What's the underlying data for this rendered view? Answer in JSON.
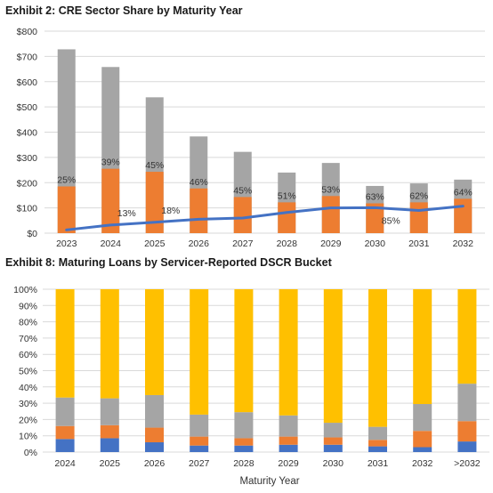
{
  "chart_data": [
    {
      "type": "bar",
      "title": "Exhibit 2: CRE Sector Share by Maturity Year",
      "categories": [
        "2023",
        "2024",
        "2025",
        "2026",
        "2027",
        "2028",
        "2029",
        "2030",
        "2031",
        "2032"
      ],
      "ylim": [
        0,
        800
      ],
      "yticks": [
        "$0",
        "$100",
        "$200",
        "$300",
        "$400",
        "$500",
        "$600",
        "$700",
        "$800"
      ],
      "series": [
        {
          "kind": "bar-total",
          "values": [
            728,
            658,
            538,
            383,
            322,
            240,
            278,
            187,
            197,
            212
          ]
        },
        {
          "kind": "bar-part",
          "values": [
            185,
            255,
            243,
            177,
            143,
            122,
            147,
            118,
            122,
            136
          ]
        },
        {
          "kind": "line",
          "values": [
            13,
            32,
            43,
            55,
            60,
            82,
            100,
            101,
            90,
            107
          ]
        }
      ],
      "data_labels": [
        "25%",
        "39%",
        "45%",
        "46%",
        "45%",
        "51%",
        "53%",
        "63%",
        "62%",
        "64%"
      ],
      "line_labels": [
        {
          "index": 1,
          "text": "13%"
        },
        {
          "index": 2,
          "text": "18%"
        },
        {
          "index": 7,
          "text": "85%"
        }
      ],
      "colors": {
        "total": "#a5a5a5",
        "part": "#ed7d31",
        "line": "#4472c4",
        "grid": "#d9d9d9"
      },
      "grid": true
    },
    {
      "type": "bar",
      "stacked": true,
      "percent": true,
      "title": "Exhibit 8: Maturing Loans by Servicer-Reported DSCR Bucket",
      "xlabel": "Maturity Year",
      "categories": [
        "2024",
        "2025",
        "2026",
        "2027",
        "2028",
        "2029",
        "2030",
        "2031",
        "2032",
        ">2032"
      ],
      "ylim": [
        0,
        100
      ],
      "yticks": [
        "0%",
        "10%",
        "20%",
        "30%",
        "40%",
        "50%",
        "60%",
        "70%",
        "80%",
        "90%",
        "100%"
      ],
      "series": [
        {
          "color": "#4472c4",
          "values": [
            8,
            8.5,
            6,
            4,
            4,
            4.5,
            4.5,
            3.5,
            3,
            6.5
          ]
        },
        {
          "color": "#ed7d31",
          "values": [
            8,
            8,
            9,
            5.5,
            4.5,
            5,
            4.5,
            4,
            10,
            12.5
          ]
        },
        {
          "color": "#a5a5a5",
          "values": [
            17.5,
            16.5,
            20,
            13.5,
            16,
            13,
            9,
            8,
            16.5,
            23
          ]
        },
        {
          "color": "#ffc000",
          "values": [
            66.5,
            67,
            65,
            77,
            75.5,
            77.5,
            82,
            84.5,
            70.5,
            58
          ]
        }
      ],
      "grid": true
    }
  ]
}
